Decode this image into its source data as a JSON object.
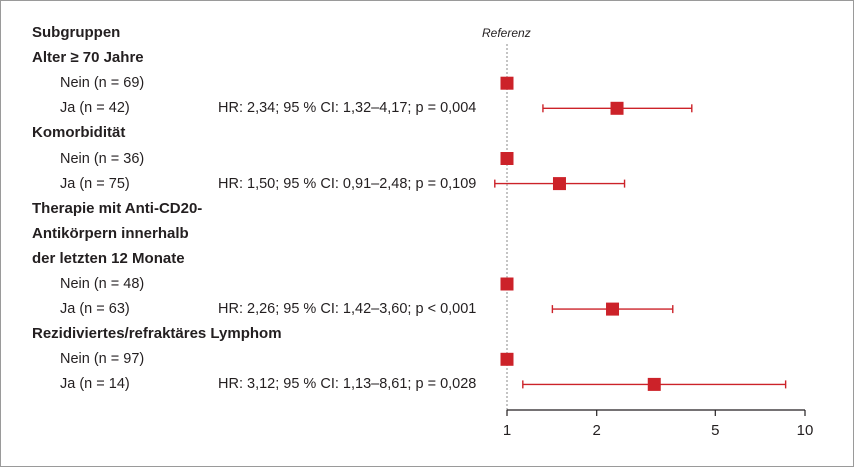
{
  "chart_data": {
    "type": "forest",
    "x_scale": "log",
    "xlim": [
      1,
      10
    ],
    "x_ticks": [
      "1",
      "2",
      "5",
      "10"
    ],
    "reference_label": "Referenz",
    "reference_value": 1,
    "colors": {
      "marker": "#cc2229",
      "axis": "#231f20",
      "reference": "#888888"
    },
    "rows": [
      {
        "label": "Subgruppen",
        "header": true
      },
      {
        "label": "Alter ≥ 70 Jahre",
        "header": true
      },
      {
        "label": "Nein (n = 69)",
        "hr": 1.0
      },
      {
        "label": "Ja (n = 42)",
        "hr": 2.34,
        "ci": [
          1.32,
          4.17
        ],
        "text": "HR: 2,34; 95 % CI: 1,32–4,17; p = 0,004"
      },
      {
        "label": "Komorbidität",
        "header": true
      },
      {
        "label": "Nein (n = 36)",
        "hr": 1.0
      },
      {
        "label": "Ja (n = 75)",
        "hr": 1.5,
        "ci": [
          0.91,
          2.48
        ],
        "text": "HR: 1,50; 95 % CI: 0,91–2,48; p = 0,109"
      },
      {
        "label": "Therapie mit Anti-CD20-",
        "header": true
      },
      {
        "label": "Antikörpern innerhalb",
        "header": true
      },
      {
        "label": "der letzten 12 Monate",
        "header": true
      },
      {
        "label": "Nein (n = 48)",
        "hr": 1.0
      },
      {
        "label": "Ja (n = 63)",
        "hr": 2.26,
        "ci": [
          1.42,
          3.6
        ],
        "text": "HR: 2,26; 95 % CI: 1,42–3,60; p < 0,001"
      },
      {
        "label": "Rezidiviertes/refraktäres Lymphom",
        "header": true
      },
      {
        "label": "Nein (n = 97)",
        "hr": 1.0
      },
      {
        "label": "Ja (n = 14)",
        "hr": 3.12,
        "ci": [
          1.13,
          8.61
        ],
        "text": "HR: 3,12; 95 % CI: 1,13–8,61; p = 0,028"
      }
    ]
  }
}
